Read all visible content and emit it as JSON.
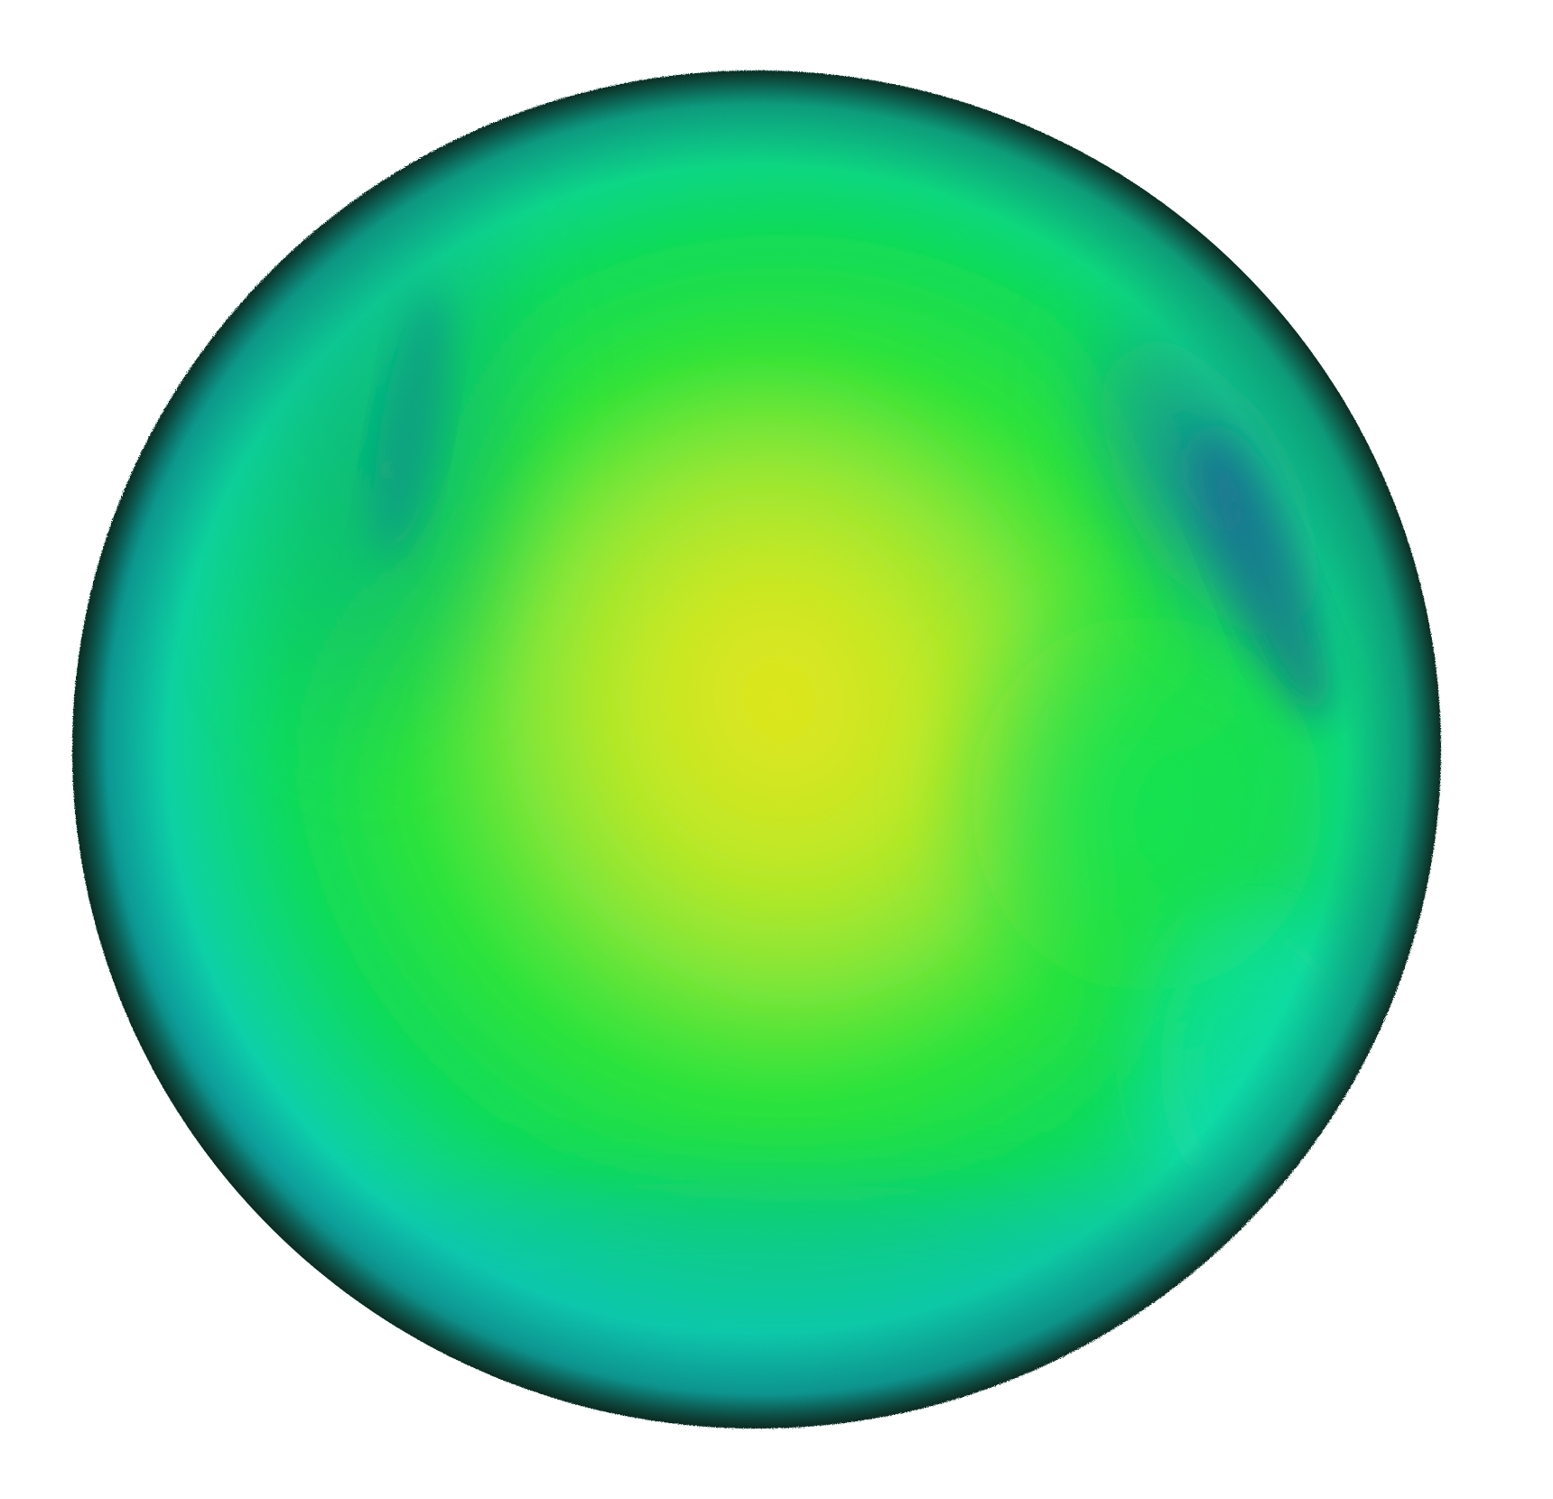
{
  "image": {
    "subject": "colormap-shaded-sphere",
    "colors": {
      "background": "#ffffff",
      "center": "#dbe51a",
      "inner": "#9ee830",
      "mid": "#2ee33a",
      "outer": "#0fd37a",
      "rim": "#0dc6c6",
      "deep_blue": "#1a6fa0",
      "edge_dark": "#0b3a2c"
    }
  }
}
